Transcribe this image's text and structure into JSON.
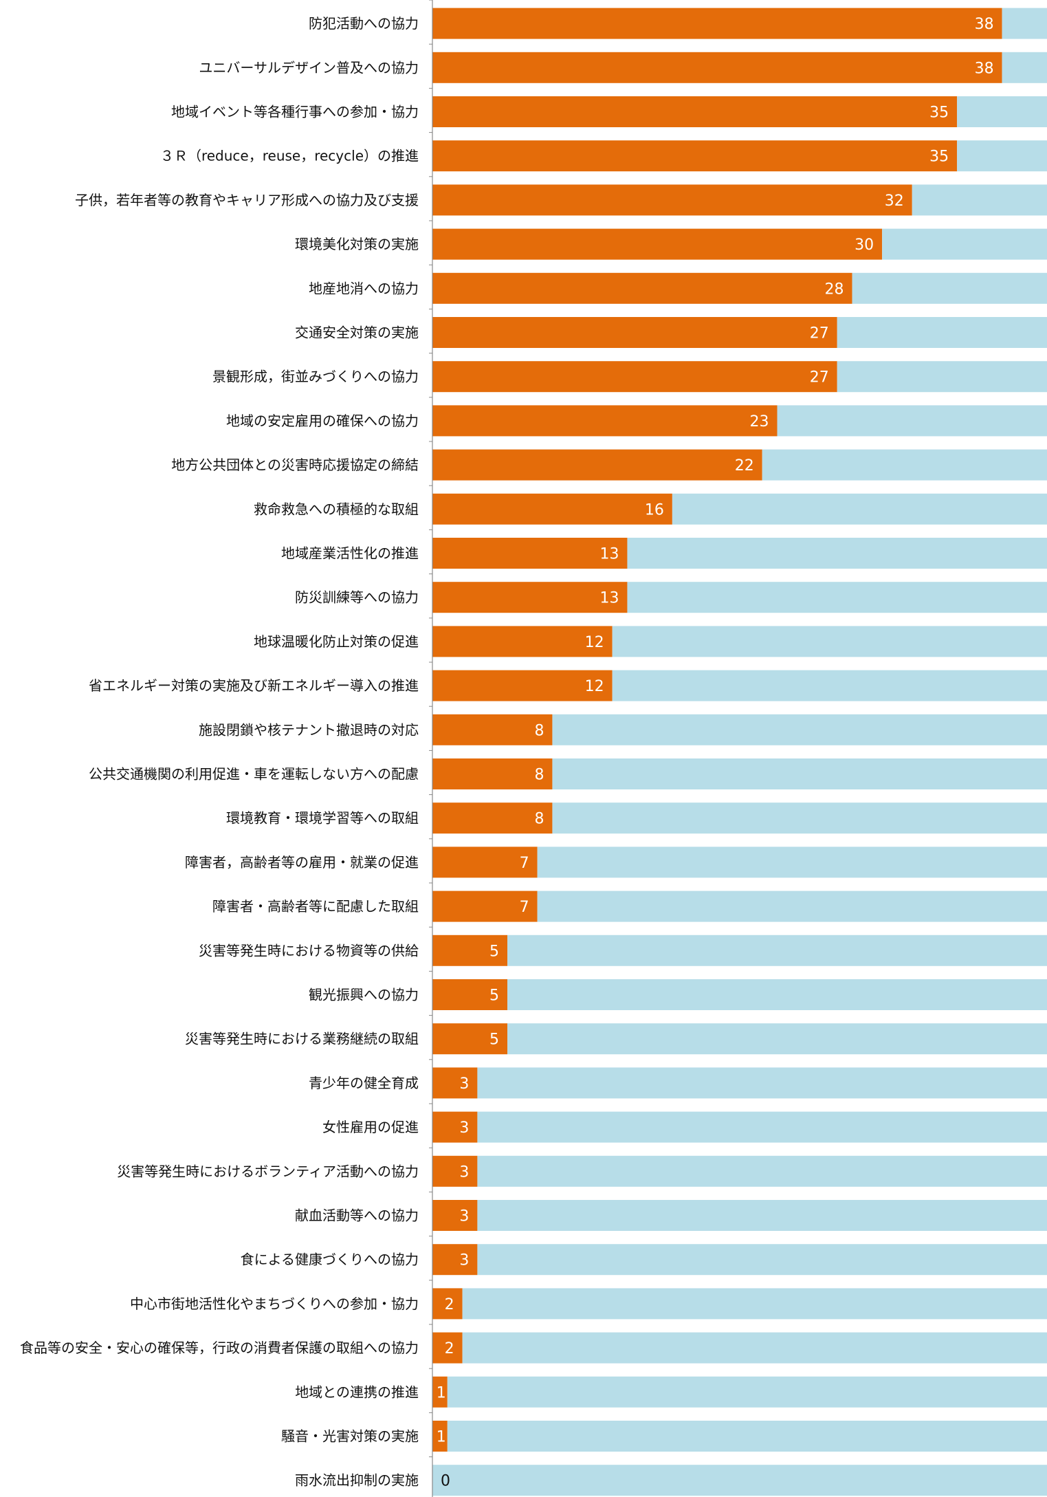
{
  "chart_data": {
    "type": "bar",
    "orientation": "horizontal",
    "stacked": true,
    "categories": [
      "防犯活動への協力",
      "ユニバーサルデザイン普及への協力",
      "地域イベント等各種行事への参加・協力",
      "３Ｒ（reduce，reuse，recycle）の推進",
      "子供，若年者等の教育やキャリア形成への協力及び支援",
      "環境美化対策の実施",
      "地産地消への協力",
      "交通安全対策の実施",
      "景観形成，街並みづくりへの協力",
      "地域の安定雇用の確保への協力",
      "地方公共団体との災害時応援協定の締結",
      "救命救急への積極的な取組",
      "地域産業活性化の推進",
      "防災訓練等への協力",
      "地球温暖化防止対策の促進",
      "省エネルギー対策の実施及び新エネルギー導入の推進",
      "施設閉鎖や核テナント撤退時の対応",
      "公共交通機関の利用促進・車を運転しない方への配慮",
      "環境教育・環境学習等への取組",
      "障害者，高齢者等の雇用・就業の促進",
      "障害者・高齢者等に配慮した取組",
      "災害等発生時における物資等の供給",
      "観光振興への協力",
      "災害等発生時における業務継続の取組",
      "青少年の健全育成",
      "女性雇用の促進",
      "災害等発生時におけるボランティア活動への協力",
      "献血活動等への協力",
      "食による健康づくりへの協力",
      "中心市街地活性化やまちづくりへの参加・協力",
      "食品等の安全・安心の確保等，行政の消費者保護の取組への協力",
      "地域との連携の推進",
      "騒音・光害対策の実施",
      "雨水流出抑制の実施"
    ],
    "series": [
      {
        "values": [
          38,
          38,
          35,
          35,
          32,
          30,
          28,
          27,
          27,
          23,
          22,
          16,
          13,
          13,
          12,
          12,
          8,
          8,
          8,
          7,
          7,
          5,
          5,
          5,
          3,
          3,
          3,
          3,
          3,
          2,
          2,
          1,
          1,
          0
        ],
        "color": "#e46c0a"
      },
      {
        "values": [
          3,
          3,
          6,
          6,
          9,
          11,
          13,
          14,
          14,
          18,
          19,
          25,
          28,
          28,
          29,
          29,
          33,
          33,
          33,
          34,
          34,
          36,
          36,
          36,
          38,
          38,
          38,
          38,
          38,
          39,
          39,
          40,
          40,
          41
        ],
        "color": "#b7dde8"
      }
    ],
    "data_labels": [
      "38",
      "38",
      "35",
      "35",
      "32",
      "30",
      "28",
      "27",
      "27",
      "23",
      "22",
      "16",
      "13",
      "13",
      "12",
      "12",
      "8",
      "8",
      "8",
      "7",
      "7",
      "5",
      "5",
      "5",
      "3",
      "3",
      "3",
      "3",
      "3",
      "2",
      "2",
      "1",
      "1",
      "0"
    ],
    "xlim": [
      0,
      41
    ],
    "axis_color": "#888888",
    "grid": false,
    "legend": "none"
  }
}
